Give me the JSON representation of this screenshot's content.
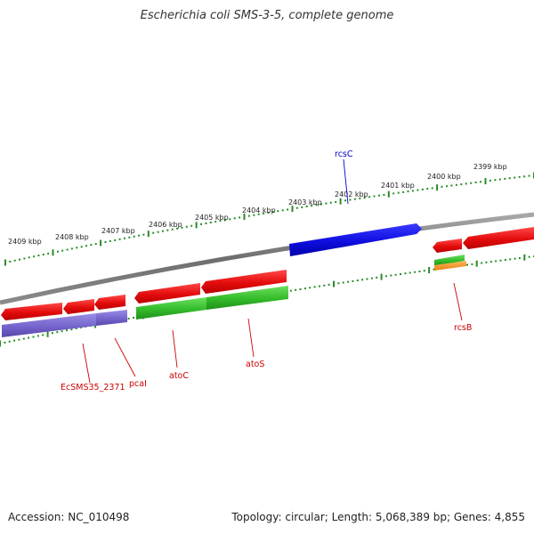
{
  "title": "Escherichia coli SMS-3-5, complete genome",
  "footer": {
    "accession": "Accession: NC_010498",
    "summary": "Topology: circular; Length: 5,068,389 bp; Genes: 4,855"
  },
  "colors": {
    "backbone": "#7a7a7a",
    "tick": "#2a8a2a",
    "red": "#ee1111",
    "green": "#33bb33",
    "blue": "#1111dd",
    "purple": "#7766cc",
    "orange": "#ff9933",
    "label_red": "#cc0000",
    "label_blue": "#0000cc"
  },
  "ticks": [
    {
      "label": "2409 kbp"
    },
    {
      "label": "2408 kbp"
    },
    {
      "label": "2407 kbp"
    },
    {
      "label": "2406 kbp"
    },
    {
      "label": "2405 kbp"
    },
    {
      "label": "2404 kbp"
    },
    {
      "label": "2403 kbp"
    },
    {
      "label": "2402 kbp"
    },
    {
      "label": "2401 kbp"
    },
    {
      "label": "2400 kbp"
    },
    {
      "label": "2399 kbp"
    }
  ],
  "gene_labels": [
    {
      "text": "rcsC",
      "color": "blue"
    },
    {
      "text": "rcsB",
      "color": "red"
    },
    {
      "text": "EcSMS35_2371",
      "color": "red"
    },
    {
      "text": "pcaI",
      "color": "red"
    },
    {
      "text": "atoC",
      "color": "red"
    },
    {
      "text": "atoS",
      "color": "red"
    }
  ]
}
